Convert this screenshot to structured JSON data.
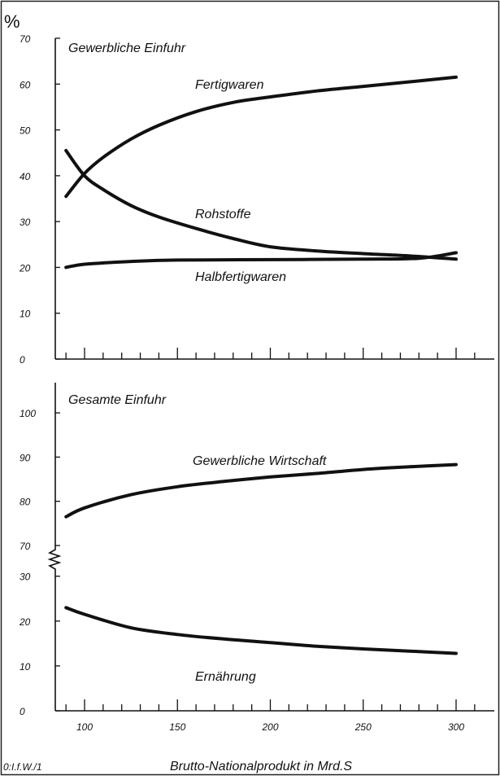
{
  "figure": {
    "source_label": "0:I.f.W./1",
    "xlabel": "Brutto-Nationalprodukt in Mrd.S",
    "x_tick_labels": [
      "100",
      "150",
      "200",
      "250",
      "300"
    ]
  },
  "chart_data": [
    {
      "type": "line",
      "title": "Gewerbliche Einfuhr",
      "ylabel": "%",
      "xlabel": "",
      "xlim": [
        88,
        320
      ],
      "ylim": [
        0,
        70
      ],
      "yticks": [
        0,
        10,
        20,
        30,
        40,
        50,
        60,
        70
      ],
      "y_tick_labels": [
        "0",
        "10",
        "20",
        "30",
        "40",
        "50",
        "60",
        "70"
      ],
      "grid": false,
      "legend": "none",
      "series": [
        {
          "name": "Fertigwaren",
          "x": [
            90,
            100,
            110,
            125,
            140,
            160,
            180,
            200,
            225,
            250,
            275,
            300
          ],
          "y": [
            35.5,
            40.5,
            44,
            48,
            51,
            54,
            56,
            57.2,
            58.5,
            59.5,
            60.5,
            61.5
          ]
        },
        {
          "name": "Rohstoffe",
          "x": [
            90,
            100,
            110,
            125,
            140,
            160,
            180,
            200,
            225,
            250,
            275,
            300
          ],
          "y": [
            45.5,
            40,
            37,
            33.5,
            31,
            28.5,
            26.3,
            24.5,
            23.6,
            23,
            22.5,
            21.8
          ]
        },
        {
          "name": "Halbfertigwaren",
          "x": [
            90,
            100,
            125,
            150,
            200,
            250,
            280,
            300
          ],
          "y": [
            20,
            20.7,
            21.3,
            21.6,
            21.7,
            21.8,
            22,
            23.2
          ]
        }
      ]
    },
    {
      "type": "line",
      "title": "Gesamte Einfuhr",
      "ylabel": "",
      "xlabel": "Brutto-Nationalprodukt in Mrd.S",
      "xlim": [
        88,
        320
      ],
      "y_axis_break": "between 30 and 70",
      "yticks": [
        0,
        10,
        20,
        30,
        70,
        80,
        90,
        100
      ],
      "y_tick_labels": [
        "0",
        "10",
        "20",
        "30",
        "70",
        "80",
        "90",
        "100"
      ],
      "grid": false,
      "legend": "none",
      "series": [
        {
          "name": "Gewerbliche Wirtschaft",
          "x": [
            90,
            100,
            125,
            150,
            175,
            200,
            225,
            250,
            275,
            300
          ],
          "y": [
            76.5,
            78.5,
            81.5,
            83.3,
            84.5,
            85.5,
            86.3,
            87.2,
            87.8,
            88.3
          ]
        },
        {
          "name": "Ernährung",
          "x": [
            90,
            100,
            125,
            150,
            175,
            200,
            225,
            250,
            275,
            300
          ],
          "y": [
            23,
            21.5,
            18.5,
            17,
            16,
            15.2,
            14.4,
            13.8,
            13.3,
            12.8
          ]
        }
      ]
    }
  ]
}
